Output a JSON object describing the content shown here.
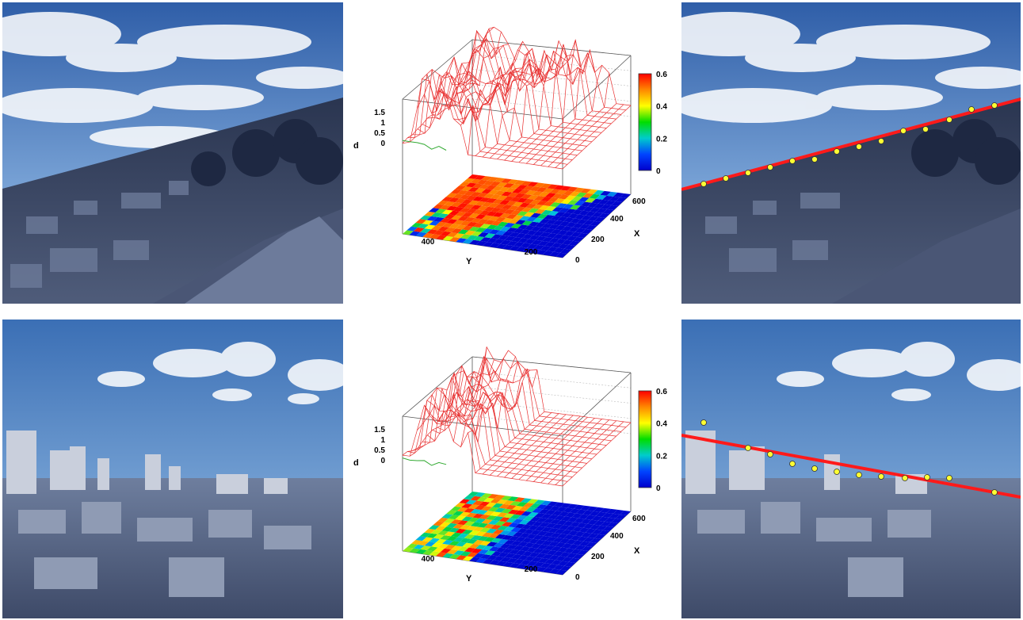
{
  "rows": [
    {
      "id": "row-1",
      "horizon_dots": [
        [
          20,
          228
        ],
        [
          55,
          222
        ],
        [
          85,
          215
        ],
        [
          112,
          210
        ],
        [
          140,
          204
        ],
        [
          168,
          198
        ],
        [
          195,
          190
        ],
        [
          225,
          184
        ],
        [
          253,
          178
        ],
        [
          280,
          172
        ],
        [
          308,
          165
        ],
        [
          338,
          157
        ]
      ],
      "horizon_dots_second_line": [
        [
          360,
          152
        ],
        [
          390,
          146
        ]
      ]
    },
    {
      "id": "row-2"
    }
  ],
  "chart_data": [
    {
      "type": "surface",
      "title": "",
      "zlabel": "d",
      "xlabel": "X",
      "ylabel": "Y",
      "z_ticks": [
        "1.5",
        "1",
        "0.5",
        "0"
      ],
      "x_ticks": [
        "0",
        "200",
        "400",
        "600"
      ],
      "y_ticks": [
        "400",
        "200"
      ],
      "colorbar": {
        "ticks": [
          "0.6",
          "0.4",
          "0.2",
          "0"
        ],
        "range": [
          0,
          0.6
        ],
        "colors": [
          "#ff0000",
          "#ff8800",
          "#ffff00",
          "#00dd00",
          "#00cccc",
          "#0044ff",
          "#0000cc"
        ]
      },
      "surface_color": "#e83030",
      "profile_color": "#33aa33"
    },
    {
      "type": "surface",
      "title": "",
      "zlabel": "d",
      "xlabel": "X",
      "ylabel": "Y",
      "z_ticks": [
        "1.5",
        "1",
        "0.5",
        "0"
      ],
      "x_ticks": [
        "0",
        "200",
        "400",
        "600"
      ],
      "y_ticks": [
        "400",
        "200"
      ],
      "colorbar": {
        "ticks": [
          "0.6",
          "0.4",
          "0.2",
          "0"
        ],
        "range": [
          0,
          0.6
        ],
        "colors": [
          "#ff0000",
          "#ff8800",
          "#ffff00",
          "#00dd00",
          "#00cccc",
          "#0044ff",
          "#0000cc"
        ]
      },
      "surface_color": "#e83030",
      "profile_color": "#33aa33"
    }
  ],
  "colors": {
    "sky_top": "#3a6fb8",
    "sky_bottom": "#9fc6ee",
    "cloud": "#ffffff",
    "city_dark": "#3a4560",
    "city_light": "#8a96b0",
    "horizon_line": "#ff1a1a",
    "horizon_dot": "#ffff33"
  }
}
